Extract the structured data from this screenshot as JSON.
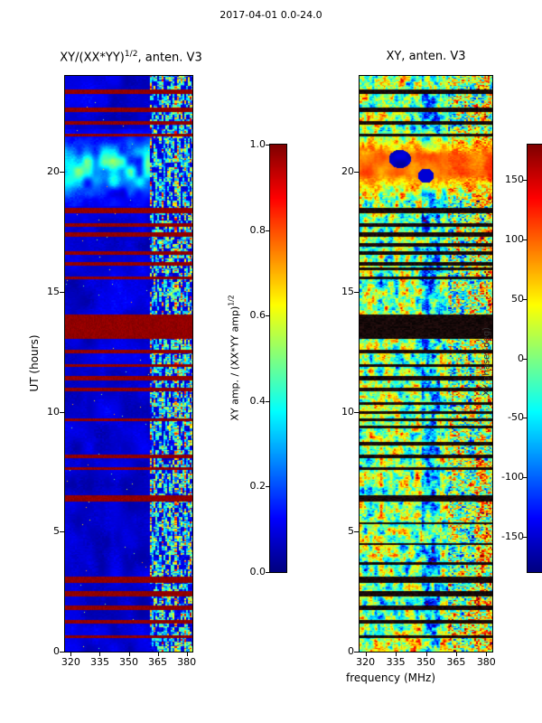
{
  "figure": {
    "suptitle": "2017-04-01 0.0-24.0"
  },
  "chart_data": [
    {
      "id": "xy_normalized_amplitude",
      "type": "heatmap",
      "title_pre": "XY/(XX*YY)",
      "title_sup": "1/2",
      "title_post": ", anten. V3",
      "xlabel": "",
      "ylabel": "UT (hours)",
      "x_range": [
        317,
        383
      ],
      "y_range": [
        0,
        24
      ],
      "x_ticks": [
        320,
        335,
        350,
        365,
        380
      ],
      "y_ticks": [
        0,
        5,
        10,
        15,
        20
      ],
      "value_range": [
        0,
        1
      ],
      "colormap": "jet",
      "features": {
        "background_level": 0.07,
        "rfi_band_mhz": [
          361,
          383
        ],
        "bright_blob_hours": [
          19.1,
          21.4
        ],
        "flagged_rows_hours": [
          [
            23.25,
            23.45
          ],
          [
            22.5,
            22.68
          ],
          [
            21.97,
            22.12
          ],
          [
            21.5,
            21.62
          ],
          [
            18.28,
            18.5
          ],
          [
            17.72,
            17.88
          ],
          [
            17.3,
            17.48
          ],
          [
            16.55,
            16.7
          ],
          [
            16.1,
            16.24
          ],
          [
            15.54,
            15.64
          ],
          [
            13.05,
            14.05
          ],
          [
            12.42,
            12.58
          ],
          [
            11.86,
            11.98
          ],
          [
            11.32,
            11.5
          ],
          [
            10.86,
            11.0
          ],
          [
            9.6,
            9.72
          ],
          [
            8.06,
            8.2
          ],
          [
            7.55,
            7.68
          ],
          [
            6.26,
            6.5
          ],
          [
            2.86,
            3.1
          ],
          [
            2.3,
            2.5
          ],
          [
            1.7,
            1.9
          ],
          [
            1.16,
            1.3
          ],
          [
            0.55,
            0.66
          ]
        ]
      },
      "colorbar": {
        "range": [
          0,
          1
        ],
        "tick_values": [
          1.0,
          0.8,
          0.6,
          0.4,
          0.2,
          0.0
        ],
        "tick_labels": [
          "1.0",
          "0.8",
          "0.6",
          "0.4",
          "0.2",
          "0.0"
        ],
        "label_pre": "XY amp. / (XX*YY amp)",
        "label_sup": "1/2"
      }
    },
    {
      "id": "xy_phase",
      "type": "heatmap",
      "title": "XY, anten. V3",
      "xlabel": "frequency (MHz)",
      "ylabel": "",
      "x_range": [
        317,
        383
      ],
      "y_range": [
        0,
        24
      ],
      "x_ticks": [
        320,
        335,
        350,
        365,
        380
      ],
      "y_ticks": [
        0,
        5,
        10,
        15,
        20
      ],
      "value_range": [
        -180,
        180
      ],
      "colormap": "jet",
      "features": {
        "rfi_band_mhz": [
          361,
          383
        ],
        "smooth_warm_blob_hours": [
          19.0,
          21.6
        ],
        "cool_column_mhz": [
          348,
          357
        ],
        "flagged_rows_hours": [
          [
            23.25,
            23.45
          ],
          [
            22.5,
            22.68
          ],
          [
            21.97,
            22.12
          ],
          [
            21.5,
            21.62
          ],
          [
            18.28,
            18.5
          ],
          [
            17.72,
            17.88
          ],
          [
            17.3,
            17.48
          ],
          [
            16.9,
            17.02
          ],
          [
            16.55,
            16.7
          ],
          [
            16.1,
            16.24
          ],
          [
            15.9,
            16.0
          ],
          [
            15.54,
            15.64
          ],
          [
            13.05,
            14.05
          ],
          [
            12.42,
            12.58
          ],
          [
            11.86,
            11.98
          ],
          [
            11.32,
            11.5
          ],
          [
            10.86,
            11.0
          ],
          [
            10.3,
            10.4
          ],
          [
            9.9,
            10.02
          ],
          [
            9.6,
            9.72
          ],
          [
            9.3,
            9.42
          ],
          [
            8.6,
            8.72
          ],
          [
            8.06,
            8.2
          ],
          [
            7.55,
            7.68
          ],
          [
            6.26,
            6.5
          ],
          [
            5.3,
            5.38
          ],
          [
            4.42,
            4.5
          ],
          [
            3.62,
            3.7
          ],
          [
            2.86,
            3.1
          ],
          [
            2.3,
            2.5
          ],
          [
            1.7,
            1.9
          ],
          [
            1.16,
            1.3
          ],
          [
            0.55,
            0.66
          ]
        ]
      },
      "colorbar": {
        "range": [
          -180,
          180
        ],
        "tick_values": [
          150,
          100,
          50,
          0,
          -50,
          -100,
          -150
        ],
        "tick_labels": [
          "150",
          "100",
          "50",
          "0",
          "-50",
          "-100",
          "-150"
        ],
        "label": "XY phase (deg)"
      }
    }
  ]
}
